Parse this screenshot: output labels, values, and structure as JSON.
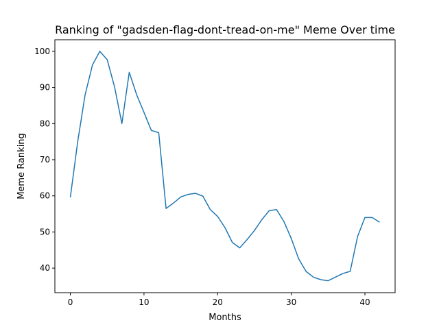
{
  "chart_data": {
    "type": "line",
    "title": "Ranking of \"gadsden-flag-dont-tread-on-me\" Meme Over time",
    "xlabel": "Months",
    "ylabel": "Meme Ranking",
    "xlim": [
      -2.1,
      44.1
    ],
    "ylim": [
      33.2,
      103.2
    ],
    "xticks": [
      0,
      10,
      20,
      30,
      40
    ],
    "yticks": [
      40,
      50,
      60,
      70,
      80,
      90,
      100
    ],
    "grid": false,
    "line_color": "#1f77b4",
    "series": [
      {
        "x": [
          0,
          1,
          2,
          3,
          4,
          5,
          6,
          7,
          8,
          9,
          10,
          11,
          12,
          13,
          14,
          15,
          16,
          17,
          18,
          19,
          20,
          21,
          22,
          23,
          24,
          25,
          26,
          27,
          28,
          29,
          30,
          31,
          32,
          33,
          34,
          35,
          36,
          37,
          38,
          39,
          40,
          41,
          42
        ],
        "y": [
          59.6,
          75.0,
          87.9,
          96.2,
          100.0,
          97.7,
          90.2,
          80.0,
          94.2,
          88.0,
          83.1,
          78.1,
          77.5,
          56.5,
          58.0,
          59.7,
          60.4,
          60.7,
          59.9,
          56.2,
          54.3,
          51.2,
          47.1,
          45.6,
          47.9,
          50.4,
          53.4,
          55.9,
          56.2,
          52.9,
          48.2,
          42.6,
          39.1,
          37.5,
          36.8,
          36.5,
          37.5,
          38.5,
          39.1,
          48.7,
          54.0,
          54.0,
          52.7
        ]
      }
    ]
  }
}
